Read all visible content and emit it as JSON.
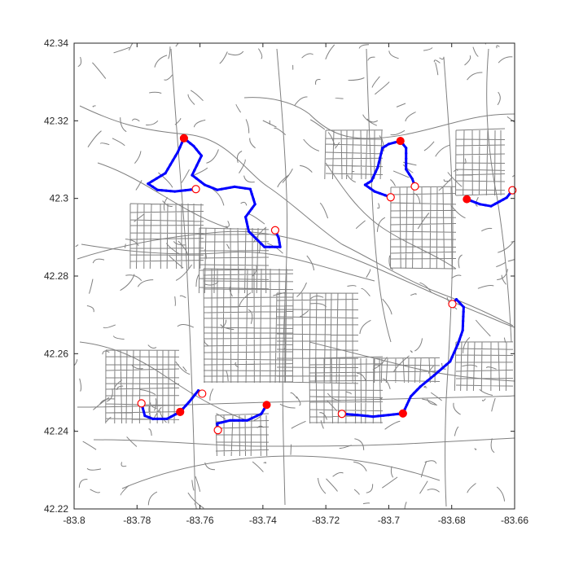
{
  "chart_data": {
    "type": "map-plot",
    "title": "",
    "xlabel": "",
    "ylabel": "",
    "xlim": [
      -83.8,
      -83.66
    ],
    "ylim": [
      42.22,
      42.34
    ],
    "xticks": [
      -83.8,
      -83.78,
      -83.76,
      -83.74,
      -83.72,
      -83.7,
      -83.68,
      -83.66
    ],
    "xtick_labels": [
      "-83.8",
      "-83.78",
      "-83.76",
      "-83.74",
      "-83.72",
      "-83.7",
      "-83.68",
      "-83.66"
    ],
    "yticks": [
      42.22,
      42.24,
      42.26,
      42.28,
      42.3,
      42.32,
      42.34
    ],
    "ytick_labels": [
      "42.22",
      "42.24",
      "42.26",
      "42.28",
      "42.3",
      "42.32",
      "42.34"
    ],
    "grid": false,
    "colors": {
      "roads": "#808080",
      "route": "#0000ff",
      "marker": "#ff0000",
      "axes": "#262626"
    },
    "routes": [
      {
        "start": [
          -83.7651,
          42.3155
        ],
        "end": [
          -83.7613,
          42.3024
        ],
        "path": [
          [
            -83.7651,
            42.3155
          ],
          [
            -83.767,
            42.312
          ],
          [
            -83.771,
            42.3065
          ],
          [
            -83.7765,
            42.3038
          ],
          [
            -83.7735,
            42.3022
          ],
          [
            -83.768,
            42.3018
          ],
          [
            -83.7613,
            42.3024
          ]
        ]
      },
      {
        "start": [
          -83.7651,
          42.3155
        ],
        "end": [
          -83.7361,
          42.2918
        ],
        "path": [
          [
            -83.7651,
            42.3155
          ],
          [
            -83.762,
            42.3135
          ],
          [
            -83.7595,
            42.311
          ],
          [
            -83.7625,
            42.306
          ],
          [
            -83.7585,
            42.3035
          ],
          [
            -83.7545,
            42.3022
          ],
          [
            -83.749,
            42.303
          ],
          [
            -83.744,
            42.3024
          ],
          [
            -83.7425,
            42.2985
          ],
          [
            -83.7455,
            42.2952
          ],
          [
            -83.7445,
            42.2915
          ],
          [
            -83.7395,
            42.2875
          ],
          [
            -83.7345,
            42.2875
          ],
          [
            -83.735,
            42.2898
          ],
          [
            -83.7361,
            42.2918
          ]
        ]
      },
      {
        "start": [
          -83.6963,
          42.3148
        ],
        "end": [
          -83.6994,
          42.3003
        ],
        "path": [
          [
            -83.6963,
            42.3148
          ],
          [
            -83.7,
            42.314
          ],
          [
            -83.702,
            42.313
          ],
          [
            -83.7035,
            42.308
          ],
          [
            -83.7055,
            42.3045
          ],
          [
            -83.7075,
            42.3035
          ],
          [
            -83.7045,
            42.3018
          ],
          [
            -83.6994,
            42.3003
          ]
        ]
      },
      {
        "start": [
          -83.6963,
          42.3148
        ],
        "end": [
          -83.6917,
          42.3031
        ],
        "path": [
          [
            -83.6963,
            42.3148
          ],
          [
            -83.6945,
            42.313
          ],
          [
            -83.6945,
            42.3075
          ],
          [
            -83.6925,
            42.305
          ],
          [
            -83.6917,
            42.3031
          ]
        ]
      },
      {
        "start": [
          -83.6752,
          42.2998
        ],
        "end": [
          -83.6607,
          42.3021
        ],
        "path": [
          [
            -83.6752,
            42.2998
          ],
          [
            -83.671,
            42.2985
          ],
          [
            -83.6675,
            42.298
          ],
          [
            -83.6648,
            42.2992
          ],
          [
            -83.6625,
            42.3002
          ],
          [
            -83.6607,
            42.3021
          ]
        ]
      },
      {
        "start": [
          -83.6955,
          42.2446
        ],
        "end": [
          -83.6798,
          42.2728
        ],
        "path": [
          [
            -83.6955,
            42.2446
          ],
          [
            -83.693,
            42.249
          ],
          [
            -83.69,
            42.2515
          ],
          [
            -83.6855,
            42.2545
          ],
          [
            -83.6805,
            42.258
          ],
          [
            -83.678,
            42.2625
          ],
          [
            -83.6765,
            42.266
          ],
          [
            -83.6762,
            42.272
          ],
          [
            -83.6785,
            42.274
          ],
          [
            -83.6798,
            42.2728
          ]
        ]
      },
      {
        "start": [
          -83.6955,
          42.2446
        ],
        "end": [
          -83.7149,
          42.2445
        ],
        "path": [
          [
            -83.6955,
            42.2446
          ],
          [
            -83.7,
            42.2442
          ],
          [
            -83.705,
            42.2438
          ],
          [
            -83.71,
            42.2442
          ],
          [
            -83.7149,
            42.2445
          ]
        ]
      },
      {
        "start": [
          -83.7388,
          42.2468
        ],
        "end": [
          -83.7543,
          42.2403
        ],
        "path": [
          [
            -83.7388,
            42.2468
          ],
          [
            -83.7405,
            42.2445
          ],
          [
            -83.745,
            42.2428
          ],
          [
            -83.7505,
            42.2428
          ],
          [
            -83.7545,
            42.242
          ],
          [
            -83.7543,
            42.2403
          ]
        ]
      },
      {
        "start": [
          -83.7663,
          42.245
        ],
        "end": [
          -83.7786,
          42.2472
        ],
        "path": [
          [
            -83.7663,
            42.245
          ],
          [
            -83.7705,
            42.2432
          ],
          [
            -83.775,
            42.2432
          ],
          [
            -83.7775,
            42.244
          ],
          [
            -83.7786,
            42.2472
          ]
        ]
      },
      {
        "start": [
          -83.7663,
          42.245
        ],
        "end": [
          -83.7593,
          42.2497
        ],
        "path": [
          [
            -83.7663,
            42.245
          ],
          [
            -83.7635,
            42.2475
          ],
          [
            -83.7605,
            42.2505
          ],
          [
            -83.7593,
            42.2497
          ]
        ]
      }
    ]
  }
}
